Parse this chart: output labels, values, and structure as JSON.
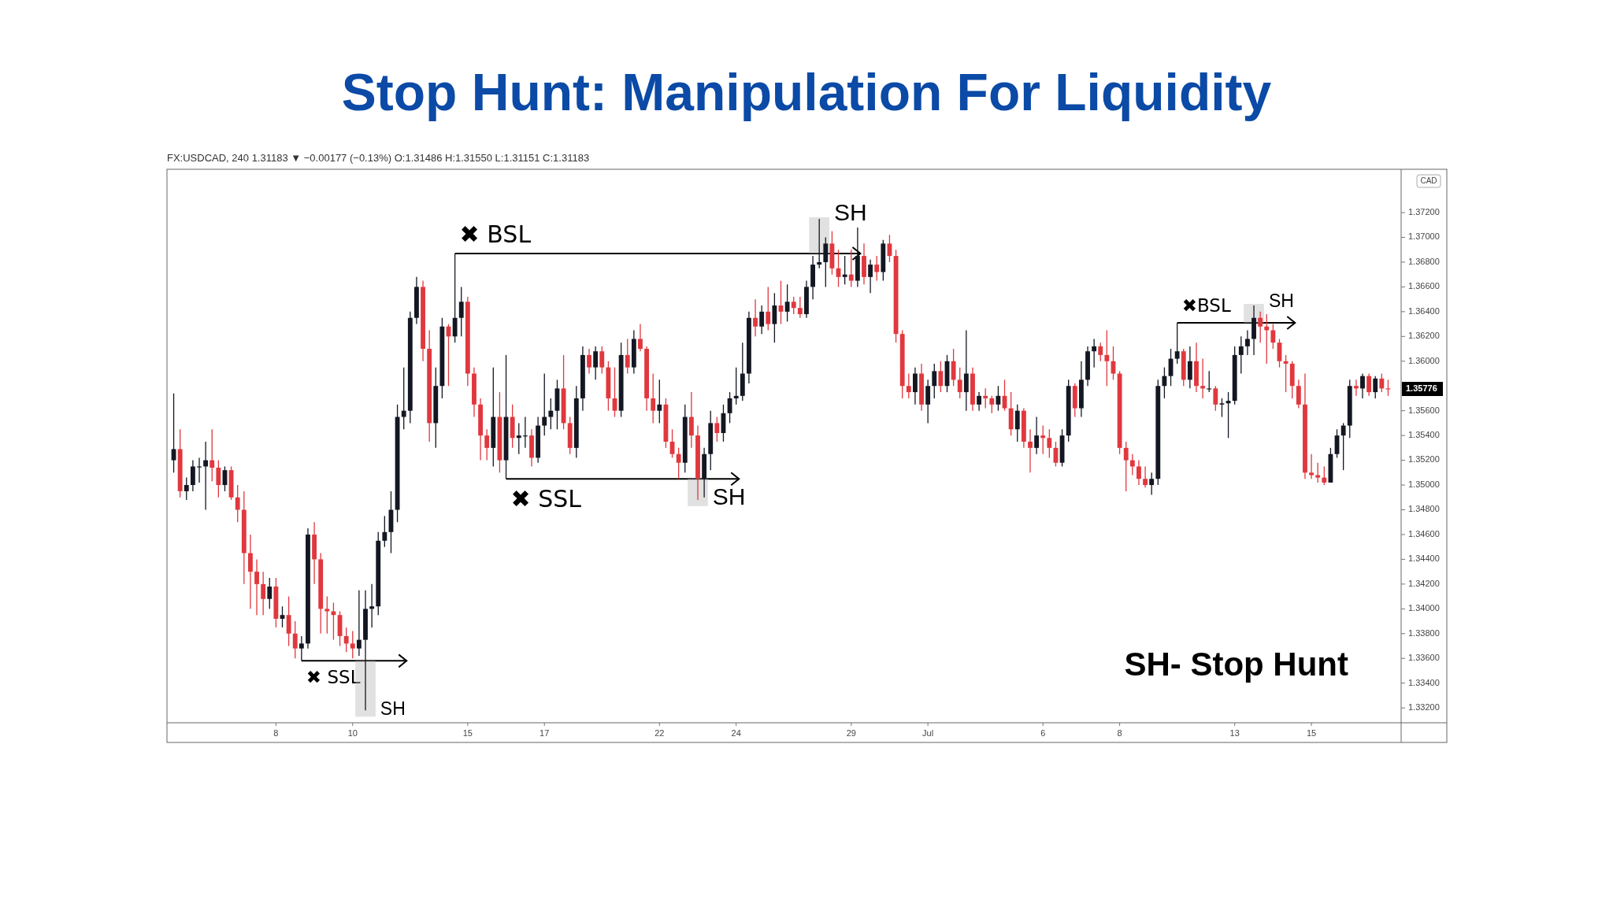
{
  "chart_data": {
    "type": "candlestick",
    "title": "Stop Hunt: Manipulation For Liquidity",
    "categories": [
      null,
      null,
      null,
      null,
      null,
      null,
      null,
      null,
      null,
      null,
      null,
      null,
      null,
      null,
      null,
      null,
      "8",
      null,
      null,
      null,
      null,
      null,
      null,
      null,
      null,
      null,
      null,
      null,
      "10",
      null,
      null,
      null,
      null,
      null,
      null,
      null,
      null,
      null,
      null,
      null,
      null,
      null,
      null,
      null,
      null,
      null,
      "15",
      null,
      null,
      null,
      null,
      null,
      null,
      null,
      null,
      null,
      null,
      null,
      "17",
      null,
      null,
      null,
      null,
      null,
      null,
      null,
      null,
      null,
      null,
      null,
      null,
      null,
      null,
      null,
      null,
      null,
      "22",
      null,
      null,
      null,
      null,
      null,
      null,
      null,
      null,
      null,
      null,
      null,
      "24",
      null,
      null,
      null,
      null,
      null,
      null,
      null,
      null,
      null,
      null,
      null,
      null,
      null,
      null,
      null,
      null,
      null,
      "29",
      null,
      null,
      null,
      null,
      null,
      null,
      null,
      null,
      null,
      null,
      null,
      "Jul",
      null,
      null,
      null,
      null,
      null,
      null,
      null,
      null,
      null,
      null,
      null,
      null,
      null,
      null,
      null,
      null,
      null,
      "6",
      null,
      null,
      null,
      null,
      null,
      null,
      null,
      null,
      null,
      null,
      null,
      "8",
      null,
      null,
      null,
      null,
      null,
      null,
      null,
      null,
      null,
      null,
      null,
      null,
      null,
      null,
      null,
      null,
      null,
      "13",
      null,
      null,
      null,
      null,
      null,
      null,
      null,
      null,
      null,
      null,
      null,
      "15",
      null,
      null,
      null,
      null,
      null,
      null,
      null,
      null,
      null,
      null,
      null,
      null
    ],
    "ohlc": [
      [
        1.352,
        1.3574,
        1.351,
        1.3529
      ],
      [
        1.3529,
        1.3545,
        1.349,
        1.3495
      ],
      [
        1.3495,
        1.3506,
        1.3488,
        1.35
      ],
      [
        1.35,
        1.352,
        1.3495,
        1.3515
      ],
      [
        1.3515,
        1.3522,
        1.3502,
        1.3515
      ],
      [
        1.3515,
        1.3535,
        1.348,
        1.352
      ],
      [
        1.352,
        1.3545,
        1.3503,
        1.3514
      ],
      [
        1.3514,
        1.352,
        1.349,
        1.35
      ],
      [
        1.35,
        1.3515,
        1.3495,
        1.3512
      ],
      [
        1.3512,
        1.3515,
        1.3488,
        1.349
      ],
      [
        1.349,
        1.35,
        1.347,
        1.348
      ],
      [
        1.348,
        1.3495,
        1.342,
        1.3445
      ],
      [
        1.3445,
        1.346,
        1.34,
        1.343
      ],
      [
        1.343,
        1.344,
        1.3395,
        1.342
      ],
      [
        1.342,
        1.343,
        1.3395,
        1.3408
      ],
      [
        1.3408,
        1.3425,
        1.34,
        1.3418
      ],
      [
        1.3418,
        1.3425,
        1.3385,
        1.3392
      ],
      [
        1.3392,
        1.3402,
        1.3385,
        1.3395
      ],
      [
        1.3395,
        1.341,
        1.337,
        1.338
      ],
      [
        1.338,
        1.339,
        1.336,
        1.3368
      ],
      [
        1.3368,
        1.3378,
        1.3358,
        1.3372
      ],
      [
        1.3372,
        1.3465,
        1.3368,
        1.346
      ],
      [
        1.346,
        1.347,
        1.342,
        1.344
      ],
      [
        1.344,
        1.3445,
        1.338,
        1.34
      ],
      [
        1.34,
        1.341,
        1.338,
        1.3398
      ],
      [
        1.3398,
        1.3405,
        1.3375,
        1.3395
      ],
      [
        1.3395,
        1.3398,
        1.337,
        1.3378
      ],
      [
        1.3378,
        1.3385,
        1.3365,
        1.3372
      ],
      [
        1.3372,
        1.3382,
        1.336,
        1.3368
      ],
      [
        1.3368,
        1.3415,
        1.3362,
        1.3375
      ],
      [
        1.3375,
        1.3415,
        1.3318,
        1.34
      ],
      [
        1.34,
        1.342,
        1.3385,
        1.3402
      ],
      [
        1.3402,
        1.3462,
        1.3395,
        1.3455
      ],
      [
        1.3455,
        1.3475,
        1.345,
        1.3462
      ],
      [
        1.3462,
        1.3495,
        1.3445,
        1.348
      ],
      [
        1.348,
        1.3565,
        1.347,
        1.3555
      ],
      [
        1.3555,
        1.3595,
        1.3545,
        1.356
      ],
      [
        1.356,
        1.364,
        1.355,
        1.3635
      ],
      [
        1.3635,
        1.3668,
        1.363,
        1.366
      ],
      [
        1.366,
        1.3665,
        1.36,
        1.361
      ],
      [
        1.361,
        1.3625,
        1.3535,
        1.355
      ],
      [
        1.355,
        1.3595,
        1.353,
        1.358
      ],
      [
        1.358,
        1.3635,
        1.357,
        1.3628
      ],
      [
        1.3628,
        1.363,
        1.358,
        1.362
      ],
      [
        1.362,
        1.3687,
        1.3615,
        1.3635
      ],
      [
        1.3635,
        1.366,
        1.362,
        1.3648
      ],
      [
        1.3648,
        1.3652,
        1.358,
        1.359
      ],
      [
        1.359,
        1.3595,
        1.3555,
        1.3565
      ],
      [
        1.3565,
        1.357,
        1.352,
        1.354
      ],
      [
        1.354,
        1.3545,
        1.352,
        1.353
      ],
      [
        1.353,
        1.3595,
        1.3515,
        1.3555
      ],
      [
        1.3555,
        1.3575,
        1.351,
        1.352
      ],
      [
        1.352,
        1.3605,
        1.3505,
        1.3555
      ],
      [
        1.3555,
        1.3565,
        1.353,
        1.3538
      ],
      [
        1.3538,
        1.355,
        1.3525,
        1.354
      ],
      [
        1.354,
        1.3555,
        1.353,
        1.354
      ],
      [
        1.354,
        1.3545,
        1.3515,
        1.3522
      ],
      [
        1.3522,
        1.3555,
        1.3518,
        1.3548
      ],
      [
        1.3548,
        1.359,
        1.354,
        1.3555
      ],
      [
        1.3555,
        1.357,
        1.3545,
        1.356
      ],
      [
        1.356,
        1.3585,
        1.3545,
        1.3578
      ],
      [
        1.3578,
        1.3605,
        1.3545,
        1.355
      ],
      [
        1.355,
        1.3555,
        1.3525,
        1.353
      ],
      [
        1.353,
        1.358,
        1.3522,
        1.357
      ],
      [
        1.357,
        1.3612,
        1.356,
        1.3605
      ],
      [
        1.3605,
        1.361,
        1.359,
        1.3595
      ],
      [
        1.3595,
        1.3612,
        1.3585,
        1.3608
      ],
      [
        1.3608,
        1.3612,
        1.359,
        1.3595
      ],
      [
        1.3595,
        1.36,
        1.356,
        1.357
      ],
      [
        1.357,
        1.3595,
        1.3555,
        1.356
      ],
      [
        1.356,
        1.3615,
        1.3555,
        1.3605
      ],
      [
        1.3605,
        1.3618,
        1.359,
        1.3595
      ],
      [
        1.3595,
        1.3625,
        1.359,
        1.3618
      ],
      [
        1.3618,
        1.363,
        1.3608,
        1.361
      ],
      [
        1.361,
        1.3612,
        1.356,
        1.357
      ],
      [
        1.357,
        1.359,
        1.355,
        1.356
      ],
      [
        1.356,
        1.3585,
        1.355,
        1.3565
      ],
      [
        1.3565,
        1.357,
        1.353,
        1.3535
      ],
      [
        1.3535,
        1.3545,
        1.3522,
        1.3525
      ],
      [
        1.3525,
        1.353,
        1.3505,
        1.3518
      ],
      [
        1.3518,
        1.3565,
        1.351,
        1.3555
      ],
      [
        1.3555,
        1.3575,
        1.353,
        1.354
      ],
      [
        1.354,
        1.3548,
        1.3488,
        1.3505
      ],
      [
        1.3505,
        1.353,
        1.349,
        1.3525
      ],
      [
        1.3525,
        1.356,
        1.3512,
        1.355
      ],
      [
        1.355,
        1.3555,
        1.3535,
        1.3542
      ],
      [
        1.3542,
        1.3565,
        1.3535,
        1.3558
      ],
      [
        1.3558,
        1.3575,
        1.355,
        1.357
      ],
      [
        1.357,
        1.3595,
        1.3565,
        1.3572
      ],
      [
        1.3572,
        1.3615,
        1.3568,
        1.359
      ],
      [
        1.359,
        1.364,
        1.3582,
        1.3635
      ],
      [
        1.3635,
        1.365,
        1.362,
        1.3628
      ],
      [
        1.3628,
        1.3645,
        1.3622,
        1.364
      ],
      [
        1.364,
        1.366,
        1.3625,
        1.363
      ],
      [
        1.363,
        1.3655,
        1.3615,
        1.3645
      ],
      [
        1.3645,
        1.3665,
        1.363,
        1.364
      ],
      [
        1.364,
        1.3662,
        1.3632,
        1.3648
      ],
      [
        1.3648,
        1.3652,
        1.3638,
        1.3643
      ],
      [
        1.3643,
        1.3652,
        1.3635,
        1.3638
      ],
      [
        1.3638,
        1.3665,
        1.3635,
        1.366
      ],
      [
        1.366,
        1.3685,
        1.365,
        1.3678
      ],
      [
        1.3678,
        1.3715,
        1.3675,
        1.368
      ],
      [
        1.368,
        1.37,
        1.366,
        1.3695
      ],
      [
        1.3695,
        1.3705,
        1.367,
        1.3675
      ],
      [
        1.3675,
        1.369,
        1.366,
        1.3668
      ],
      [
        1.3668,
        1.3685,
        1.3662,
        1.367
      ],
      [
        1.367,
        1.369,
        1.366,
        1.3665
      ],
      [
        1.3665,
        1.3708,
        1.366,
        1.3685
      ],
      [
        1.3685,
        1.3695,
        1.3662,
        1.3668
      ],
      [
        1.3668,
        1.3682,
        1.3655,
        1.3678
      ],
      [
        1.3678,
        1.3685,
        1.3665,
        1.3672
      ],
      [
        1.3672,
        1.3698,
        1.3665,
        1.3695
      ],
      [
        1.3695,
        1.3702,
        1.368,
        1.3685
      ],
      [
        1.3685,
        1.369,
        1.3615,
        1.3622
      ],
      [
        1.3622,
        1.3625,
        1.357,
        1.358
      ],
      [
        1.358,
        1.359,
        1.357,
        1.3575
      ],
      [
        1.3575,
        1.3595,
        1.3565,
        1.359
      ],
      [
        1.359,
        1.3598,
        1.356,
        1.3565
      ],
      [
        1.3565,
        1.3585,
        1.355,
        1.358
      ],
      [
        1.358,
        1.3598,
        1.357,
        1.3592
      ],
      [
        1.3592,
        1.36,
        1.3575,
        1.358
      ],
      [
        1.358,
        1.3605,
        1.3575,
        1.36
      ],
      [
        1.36,
        1.361,
        1.358,
        1.3585
      ],
      [
        1.3585,
        1.3595,
        1.357,
        1.3575
      ],
      [
        1.3575,
        1.3625,
        1.356,
        1.359
      ],
      [
        1.359,
        1.3595,
        1.356,
        1.3565
      ],
      [
        1.3565,
        1.3575,
        1.356,
        1.3572
      ],
      [
        1.3572,
        1.3578,
        1.3562,
        1.357
      ],
      [
        1.357,
        1.3572,
        1.3558,
        1.3565
      ],
      [
        1.3565,
        1.358,
        1.356,
        1.3572
      ],
      [
        1.3572,
        1.3585,
        1.356,
        1.3562
      ],
      [
        1.3562,
        1.3575,
        1.354,
        1.3545
      ],
      [
        1.3545,
        1.3565,
        1.3535,
        1.356
      ],
      [
        1.356,
        1.3562,
        1.353,
        1.3535
      ],
      [
        1.3535,
        1.3545,
        1.351,
        1.353
      ],
      [
        1.353,
        1.3555,
        1.3525,
        1.354
      ],
      [
        1.354,
        1.3548,
        1.3525,
        1.3538
      ],
      [
        1.3538,
        1.3545,
        1.3522,
        1.353
      ],
      [
        1.353,
        1.3535,
        1.3515,
        1.3518
      ],
      [
        1.3518,
        1.3545,
        1.3515,
        1.354
      ],
      [
        1.354,
        1.3585,
        1.3535,
        1.358
      ],
      [
        1.358,
        1.3582,
        1.3555,
        1.3562
      ],
      [
        1.3562,
        1.36,
        1.3555,
        1.3585
      ],
      [
        1.3585,
        1.3612,
        1.358,
        1.3608
      ],
      [
        1.3608,
        1.3618,
        1.3595,
        1.3612
      ],
      [
        1.3612,
        1.3615,
        1.36,
        1.3605
      ],
      [
        1.3605,
        1.3625,
        1.358,
        1.36
      ],
      [
        1.36,
        1.3612,
        1.3585,
        1.359
      ],
      [
        1.359,
        1.3592,
        1.3525,
        1.353
      ],
      [
        1.353,
        1.3535,
        1.3495,
        1.352
      ],
      [
        1.352,
        1.3525,
        1.3508,
        1.3515
      ],
      [
        1.3515,
        1.352,
        1.35,
        1.3505
      ],
      [
        1.3505,
        1.3515,
        1.3498,
        1.35
      ],
      [
        1.35,
        1.351,
        1.3492,
        1.3505
      ],
      [
        1.3505,
        1.3585,
        1.35,
        1.358
      ],
      [
        1.358,
        1.3595,
        1.357,
        1.3588
      ],
      [
        1.3588,
        1.361,
        1.358,
        1.3602
      ],
      [
        1.3602,
        1.3631,
        1.3598,
        1.3608
      ],
      [
        1.3608,
        1.361,
        1.358,
        1.3585
      ],
      [
        1.3585,
        1.3612,
        1.3578,
        1.36
      ],
      [
        1.36,
        1.3615,
        1.3575,
        1.358
      ],
      [
        1.358,
        1.3602,
        1.357,
        1.3578
      ],
      [
        1.3578,
        1.3592,
        1.3575,
        1.3578
      ],
      [
        1.3578,
        1.358,
        1.356,
        1.3565
      ],
      [
        1.3565,
        1.357,
        1.3555,
        1.3566
      ],
      [
        1.3566,
        1.3575,
        1.3538,
        1.3568
      ],
      [
        1.3568,
        1.3612,
        1.3565,
        1.3605
      ],
      [
        1.3605,
        1.362,
        1.359,
        1.3612
      ],
      [
        1.3612,
        1.3625,
        1.3605,
        1.3618
      ],
      [
        1.3618,
        1.3645,
        1.3605,
        1.3635
      ],
      [
        1.3635,
        1.364,
        1.3615,
        1.3628
      ],
      [
        1.3628,
        1.3638,
        1.3598,
        1.3625
      ],
      [
        1.3625,
        1.363,
        1.361,
        1.3615
      ],
      [
        1.3615,
        1.3618,
        1.3595,
        1.36
      ],
      [
        1.36,
        1.3605,
        1.3575,
        1.3598
      ],
      [
        1.3598,
        1.36,
        1.357,
        1.358
      ],
      [
        1.358,
        1.3585,
        1.3562,
        1.3565
      ],
      [
        1.3565,
        1.359,
        1.3505,
        1.351
      ],
      [
        1.351,
        1.3525,
        1.3505,
        1.3508
      ],
      [
        1.3508,
        1.3518,
        1.3502,
        1.3506
      ],
      [
        1.3506,
        1.3515,
        1.35,
        1.3502
      ],
      [
        1.3502,
        1.353,
        1.3502,
        1.3525
      ],
      [
        1.3525,
        1.3545,
        1.3522,
        1.354
      ],
      [
        1.354,
        1.355,
        1.3512,
        1.3548
      ],
      [
        1.3548,
        1.3585,
        1.3538,
        1.358
      ],
      [
        1.358,
        1.3585,
        1.3572,
        1.3578
      ],
      [
        1.3578,
        1.359,
        1.357,
        1.3588
      ],
      [
        1.3588,
        1.359,
        1.3572,
        1.3575
      ],
      [
        1.3575,
        1.3588,
        1.357,
        1.3586
      ],
      [
        1.3586,
        1.359,
        1.3575,
        1.3578
      ],
      [
        1.3578,
        1.3585,
        1.3572,
        1.35776
      ]
    ],
    "colors": [
      "#131722",
      "#e0383e",
      "#131722",
      "#131722",
      "#131722",
      "#131722",
      "#e0383e",
      "#e0383e",
      "#131722",
      "#e0383e",
      "#e0383e",
      "#e0383e",
      "#e0383e",
      "#e0383e",
      "#e0383e",
      "#131722",
      "#e0383e",
      "#131722",
      "#e0383e",
      "#e0383e",
      "#131722",
      "#131722",
      "#e0383e",
      "#e0383e",
      "#e0383e",
      "#e0383e",
      "#e0383e",
      "#e0383e",
      "#e0383e",
      "#131722",
      "#131722",
      "#131722",
      "#131722",
      "#131722",
      "#131722",
      "#131722",
      "#131722",
      "#131722",
      "#131722",
      "#e0383e",
      "#e0383e",
      "#131722",
      "#131722",
      "#e0383e",
      "#131722",
      "#131722",
      "#e0383e",
      "#e0383e",
      "#e0383e",
      "#e0383e",
      "#131722",
      "#e0383e",
      "#131722",
      "#e0383e",
      "#131722",
      "#131722",
      "#e0383e",
      "#131722",
      "#131722",
      "#131722",
      "#131722",
      "#e0383e",
      "#e0383e",
      "#131722",
      "#131722",
      "#e0383e",
      "#131722",
      "#e0383e",
      "#e0383e",
      "#e0383e",
      "#131722",
      "#e0383e",
      "#131722",
      "#e0383e",
      "#e0383e",
      "#e0383e",
      "#131722",
      "#e0383e",
      "#e0383e",
      "#e0383e",
      "#131722",
      "#e0383e",
      "#e0383e",
      "#131722",
      "#131722",
      "#e0383e",
      "#131722",
      "#131722",
      "#131722",
      "#131722",
      "#131722",
      "#e0383e",
      "#131722",
      "#e0383e",
      "#131722",
      "#e0383e",
      "#131722",
      "#e0383e",
      "#e0383e",
      "#131722",
      "#131722",
      "#131722",
      "#131722",
      "#e0383e",
      "#e0383e",
      "#131722",
      "#e0383e",
      "#131722",
      "#e0383e",
      "#131722",
      "#e0383e",
      "#131722",
      "#e0383e",
      "#e0383e",
      "#e0383e",
      "#e0383e",
      "#131722",
      "#e0383e",
      "#131722",
      "#131722",
      "#e0383e",
      "#131722",
      "#e0383e",
      "#e0383e",
      "#131722",
      "#e0383e",
      "#131722",
      "#e0383e",
      "#e0383e",
      "#131722",
      "#e0383e",
      "#e0383e",
      "#131722",
      "#e0383e",
      "#e0383e",
      "#131722",
      "#e0383e",
      "#e0383e",
      "#e0383e",
      "#131722",
      "#131722",
      "#e0383e",
      "#131722",
      "#131722",
      "#131722",
      "#e0383e",
      "#e0383e",
      "#e0383e",
      "#e0383e",
      "#e0383e",
      "#e0383e",
      "#e0383e",
      "#e0383e",
      "#131722",
      "#131722",
      "#131722",
      "#131722",
      "#131722",
      "#e0383e",
      "#131722",
      "#e0383e",
      "#e0383e",
      "#131722",
      "#e0383e",
      "#131722",
      "#131722",
      "#131722",
      "#131722",
      "#131722",
      "#131722",
      "#e0383e",
      "#e0383e",
      "#e0383e",
      "#e0383e",
      "#e0383e",
      "#e0383e",
      "#e0383e",
      "#e0383e",
      "#e0383e",
      "#e0383e",
      "#e0383e",
      "#131722",
      "#131722",
      "#131722",
      "#131722",
      "#e0383e",
      "#131722",
      "#e0383e",
      "#131722",
      "#e0383e",
      "#e0383e"
    ],
    "ylim": [
      1.3308,
      1.3755
    ],
    "yticks": [
      {
        "value": 1.332,
        "label": "1.33200"
      },
      {
        "value": 1.334,
        "label": "1.33400"
      },
      {
        "value": 1.336,
        "label": "1.33600"
      },
      {
        "value": 1.338,
        "label": "1.33800"
      },
      {
        "value": 1.34,
        "label": "1.34000"
      },
      {
        "value": 1.342,
        "label": "1.34200"
      },
      {
        "value": 1.344,
        "label": "1.34400"
      },
      {
        "value": 1.346,
        "label": "1.34600"
      },
      {
        "value": 1.348,
        "label": "1.34800"
      },
      {
        "value": 1.35,
        "label": "1.35000"
      },
      {
        "value": 1.352,
        "label": "1.35200"
      },
      {
        "value": 1.354,
        "label": "1.35400"
      },
      {
        "value": 1.356,
        "label": "1.35600"
      },
      {
        "value": 1.36,
        "label": "1.36000"
      },
      {
        "value": 1.362,
        "label": "1.36200"
      },
      {
        "value": 1.364,
        "label": "1.36400"
      },
      {
        "value": 1.366,
        "label": "1.36600"
      },
      {
        "value": 1.368,
        "label": "1.36800"
      },
      {
        "value": 1.37,
        "label": "1.37000"
      },
      {
        "value": 1.372,
        "label": "1.37200"
      }
    ],
    "ref_lines": [
      {
        "axis": "y",
        "value": 1.3358,
        "label": "✖ SSL"
      },
      {
        "axis": "y",
        "value": 1.3687,
        "label": "✖ BSL"
      },
      {
        "axis": "y",
        "value": 1.3505,
        "label": "✖ SSL"
      },
      {
        "axis": "y",
        "value": 1.3631,
        "label": "✖BSL"
      }
    ],
    "annotations": [
      "FX:USDCAD, 240  1.31183 ▼ −0.00177 (−0.13%) O:1.31486 H:1.31550 L:1.31151 C:1.31183",
      "CAD",
      "SH- Stop Hunt",
      {
        "text": "SH",
        "y": 1.3358
      },
      {
        "text": "SH",
        "y": 1.3687
      },
      {
        "text": "SH",
        "y": 1.3505
      },
      {
        "text": "SH",
        "y": 1.3631
      },
      "1.35776"
    ]
  }
}
